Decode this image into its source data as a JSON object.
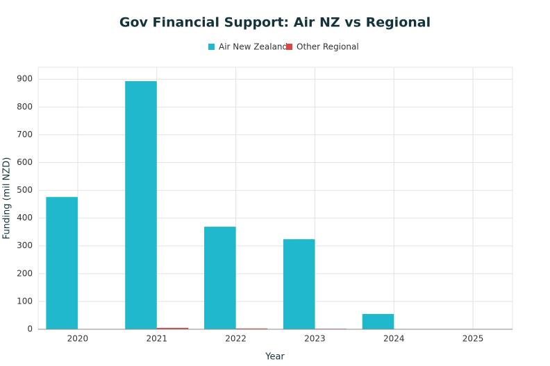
{
  "chart_data": {
    "type": "bar",
    "title": "Gov Financial Support: Air NZ vs Regional",
    "x_label": "Year",
    "y_label": "Funding (mil NZD)",
    "categories": [
      "2020",
      "2021",
      "2022",
      "2023",
      "2024",
      "2025"
    ],
    "series": [
      {
        "name": "Air New Zealand",
        "color": "#1fb8cd",
        "values": [
          476,
          893,
          369,
          324,
          55,
          0
        ]
      },
      {
        "name": "Other Regional",
        "color": "#db4545",
        "values": [
          0,
          5,
          3,
          2,
          1,
          0
        ]
      }
    ],
    "ylim": [
      0,
      943
    ],
    "yticks": [
      0,
      100,
      200,
      300,
      400,
      500,
      600,
      700,
      800,
      900
    ],
    "grid": true
  }
}
